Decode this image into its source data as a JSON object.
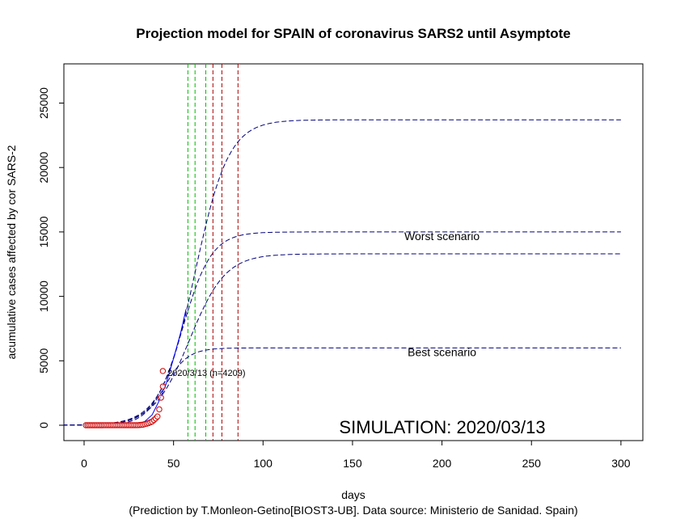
{
  "chart_data": {
    "type": "line",
    "title": "Projection model for SPAIN of coronavirus SARS2 until Asymptote",
    "xlabel": "days",
    "ylabel": "acumulative cases affected by cor SARS-2",
    "caption": "(Prediction by T.Monleon-Getino[BIOST3-UB]. Data source: Ministerio de Sanidad. Spain)",
    "xlim": [
      -12,
      313
    ],
    "ylim": [
      -1200,
      28000
    ],
    "x_ticks": [
      0,
      50,
      100,
      150,
      200,
      250,
      300
    ],
    "y_ticks": [
      0,
      5000,
      10000,
      15000,
      20000,
      25000
    ],
    "watermark": "SIMULATION: 2020/03/13",
    "point_annotation": {
      "text": "2020/3/13 (n=4209)",
      "x": 43,
      "y": 4209
    },
    "scenario_labels": [
      {
        "text": "Worst scenario",
        "x": 200,
        "y": 14500
      },
      {
        "text": "Best scenario",
        "x": 200,
        "y": 5500
      }
    ],
    "vertical_lines": [
      {
        "x": 58,
        "color": "#00bb00"
      },
      {
        "x": 62,
        "color": "#00bb00"
      },
      {
        "x": 68,
        "color": "#00bb00"
      },
      {
        "x": 72,
        "color": "#aa0000"
      },
      {
        "x": 77,
        "color": "#aa0000"
      },
      {
        "x": 86,
        "color": "#aa0000"
      }
    ],
    "series": [
      {
        "type": "logistic",
        "asymptote": 23700,
        "midpoint": 62,
        "scale": 9.4,
        "style": "dashed",
        "color": "#00007a",
        "x_range": [
          -12,
          300
        ]
      },
      {
        "type": "logistic",
        "asymptote": 15000,
        "midpoint": 55,
        "scale": 8.1,
        "style": "dashed",
        "color": "#00007a",
        "x_range": [
          -12,
          300
        ]
      },
      {
        "type": "logistic",
        "asymptote": 13300,
        "midpoint": 59,
        "scale": 10.0,
        "style": "dashed",
        "color": "#00007a",
        "x_range": [
          -12,
          300
        ]
      },
      {
        "type": "logistic",
        "asymptote": 6000,
        "midpoint": 45,
        "scale": 6.5,
        "style": "dashed",
        "color": "#00007a",
        "x_range": [
          -12,
          300
        ]
      },
      {
        "type": "line",
        "style": "solid",
        "color": "#0000ff",
        "points": [
          [
            30,
            100
          ],
          [
            34,
            300
          ],
          [
            38,
            800
          ],
          [
            42,
            1900
          ],
          [
            46,
            3300
          ],
          [
            50,
            5200
          ],
          [
            54,
            7200
          ],
          [
            57,
            9000
          ]
        ]
      }
    ],
    "observed": {
      "color": "#d00000",
      "points": [
        [
          1,
          0
        ],
        [
          2,
          0
        ],
        [
          3,
          0
        ],
        [
          4,
          0
        ],
        [
          5,
          0
        ],
        [
          6,
          0
        ],
        [
          7,
          0
        ],
        [
          8,
          0
        ],
        [
          9,
          0
        ],
        [
          10,
          0
        ],
        [
          11,
          1
        ],
        [
          12,
          2
        ],
        [
          13,
          2
        ],
        [
          14,
          2
        ],
        [
          15,
          2
        ],
        [
          16,
          2
        ],
        [
          17,
          2
        ],
        [
          18,
          2
        ],
        [
          19,
          2
        ],
        [
          20,
          2
        ],
        [
          21,
          2
        ],
        [
          22,
          2
        ],
        [
          23,
          2
        ],
        [
          24,
          2
        ],
        [
          25,
          2
        ],
        [
          26,
          2
        ],
        [
          27,
          2
        ],
        [
          28,
          2
        ],
        [
          29,
          2
        ],
        [
          30,
          3
        ],
        [
          31,
          15
        ],
        [
          32,
          32
        ],
        [
          33,
          45
        ],
        [
          34,
          84
        ],
        [
          35,
          120
        ],
        [
          36,
          165
        ],
        [
          37,
          228
        ],
        [
          38,
          282
        ],
        [
          39,
          401
        ],
        [
          40,
          525
        ],
        [
          41,
          674
        ],
        [
          42,
          1231
        ],
        [
          43,
          2140
        ],
        [
          44,
          3004
        ],
        [
          44,
          4209
        ]
      ]
    }
  }
}
